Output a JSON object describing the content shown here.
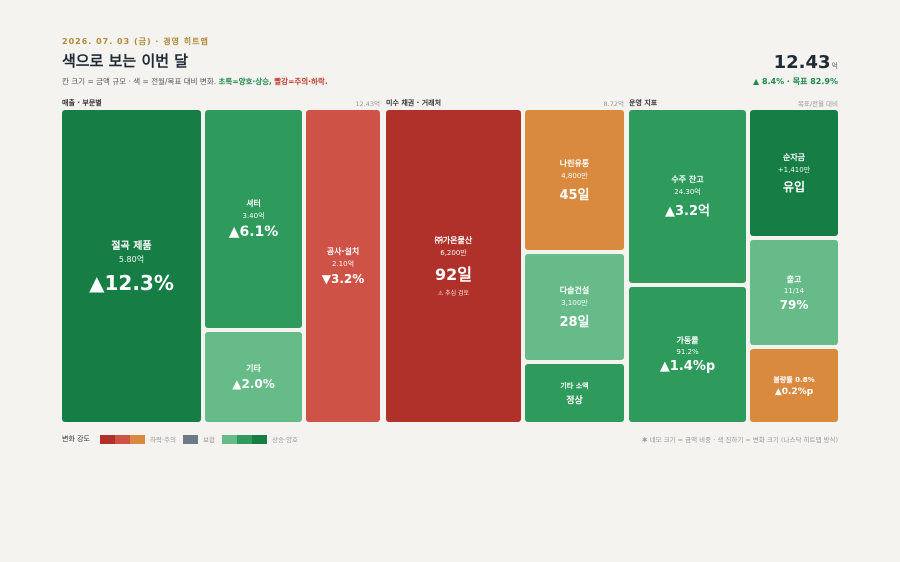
{
  "header": {
    "date": "2026. 07. 03 (금) · 경영 히트맵",
    "title": "색으로 보는 이번 달",
    "subtitle_lead": "칸 크기 = 금액 규모 · 색 = 전월/목표 대비 변화.",
    "subtitle_good": "초록=양호·상승,",
    "subtitle_bad": "빨강=주의·하락.",
    "kpi_value": "12.43",
    "kpi_unit": "억",
    "kpi_sub": "▲ 8.4% · 목표 82.9%"
  },
  "colors": {
    "strong_green": "#167d45",
    "green": "#2e9a5c",
    "light_green": "#66bb88",
    "red": "#cf5247",
    "dark_red": "#b0302a",
    "orange": "#d98a3f",
    "neutral": "#6e7a8a"
  },
  "sections": {
    "revenue": {
      "label": "매출 · 부문별",
      "total": "12.43억"
    },
    "receivables": {
      "label": "미수 채권 · 거래처",
      "total": "8.72억"
    },
    "ops": {
      "label": "운영 지표",
      "total": "목표/전월 대비"
    }
  },
  "chart_data": {
    "type": "heatmap",
    "subtype": "treemap",
    "groups": [
      {
        "name": "매출 · 부문별",
        "total": "12.43억",
        "tiles": [
          {
            "name": "절곡 제품",
            "amount": "5.80억",
            "change": "▲12.3%",
            "value": 5.8,
            "change_pct": 12.3
          },
          {
            "name": "셔터",
            "amount": "3.40억",
            "change": "▲6.1%",
            "value": 3.4,
            "change_pct": 6.1
          },
          {
            "name": "기타",
            "amount": "",
            "change": "▲2.0%",
            "change_pct": 2.0
          },
          {
            "name": "공사·설치",
            "amount": "2.10억",
            "change": "▼3.2%",
            "value": 2.1,
            "change_pct": -3.2
          }
        ]
      },
      {
        "name": "미수 채권 · 거래처",
        "total": "8.72억",
        "tiles": [
          {
            "name": "㈜가온물산",
            "amount": "6,200만",
            "change": "92일",
            "note": "⚠ 추심 검토",
            "value": 6200,
            "days": 92
          },
          {
            "name": "나린유통",
            "amount": "4,800만",
            "change": "45일",
            "value": 4800,
            "days": 45
          },
          {
            "name": "다솔건설",
            "amount": "3,100만",
            "change": "28일",
            "value": 3100,
            "days": 28
          },
          {
            "name": "기타 소액",
            "amount": "",
            "change": "정상"
          }
        ]
      },
      {
        "name": "운영 지표",
        "total": "목표/전월 대비",
        "tiles": [
          {
            "name": "수주 잔고",
            "amount": "24.30억",
            "change": "▲3.2억",
            "value": 24.3
          },
          {
            "name": "가동률",
            "amount": "91.2%",
            "change": "▲1.4%p",
            "value": 91.2
          },
          {
            "name": "순자금",
            "amount": "+1,410만",
            "change": "유입"
          },
          {
            "name": "출고",
            "amount": "11/14",
            "change": "79%",
            "value": 79
          },
          {
            "name": "불량률 0.8%",
            "amount": "",
            "change": "▲0.2%p",
            "value": 0.8
          }
        ]
      }
    ]
  },
  "legend": {
    "label": "변화 강도",
    "bad_text": "하락·주의",
    "neutral_text": "보합",
    "good_text": "상승·양호",
    "footnote": "✱ 네모 크기 = 금액 비중 · 색 진하기 = 변화 크기 (나스닥 히트맵 방식)"
  }
}
